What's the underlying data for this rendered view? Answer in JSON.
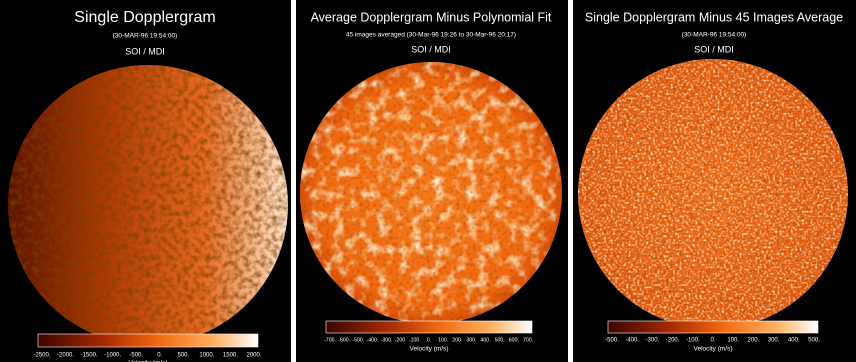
{
  "panels": [
    {
      "title": "Single Dopplergram",
      "subtitle": "(30-MAR-96  19:54:00)",
      "instrument": "SOI / MDI",
      "colorbar": {
        "ticks": [
          "-2500.",
          "-2000.",
          "-1500.",
          "-1000.",
          "-500.",
          "0.",
          "500.",
          "1000.",
          "1500.",
          "2000."
        ],
        "label": "Velocity (m/s)"
      }
    },
    {
      "title": "Average Dopplergram Minus Polynomial Fit",
      "subtitle": "45 images averaged (30-Mar-96 19:26 to 30-Mar-96 20:17)",
      "instrument": "SOI / MDI",
      "colorbar": {
        "ticks": [
          "-700.",
          "-600.",
          "-500.",
          "-400.",
          "-300.",
          "-200.",
          "-100.",
          "0.",
          "100.",
          "200.",
          "300.",
          "400.",
          "500.",
          "600.",
          "700."
        ],
        "label": "Velocity (m/s)"
      }
    },
    {
      "title": "Single Dopplergram Minus 45 Images Average",
      "subtitle": "(30-MAR-96  19:54:00)",
      "instrument": "SOI / MDI",
      "colorbar": {
        "ticks": [
          "-500.",
          "-400.",
          "-300.",
          "-200.",
          "-100.",
          "0.",
          "100.",
          "200.",
          "300.",
          "400.",
          "500."
        ],
        "label": "Velocity (m/s)"
      }
    }
  ]
}
